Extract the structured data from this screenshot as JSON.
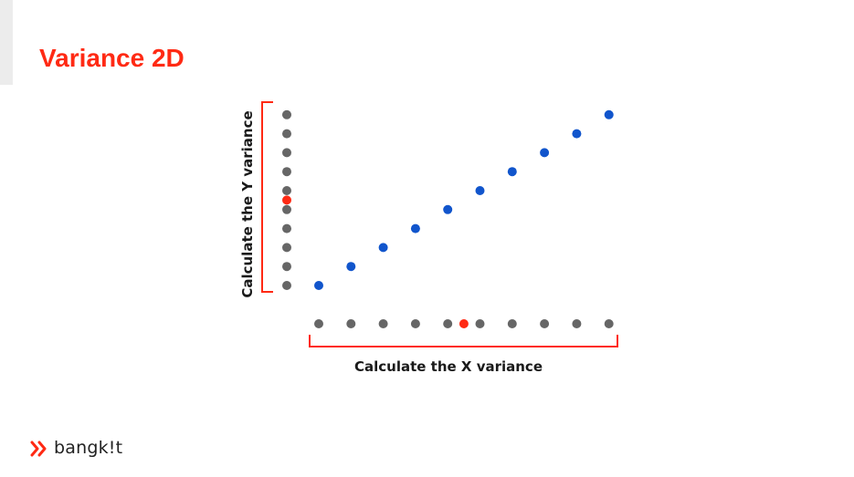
{
  "slide": {
    "title": "Variance 2D"
  },
  "diagram": {
    "x_variance_label": "Calculate the X variance",
    "y_variance_label": "Calculate the Y variance",
    "point_count": 10,
    "colors": {
      "data_point": "#1155cc",
      "projection_point": "#666666",
      "mean_point": "#ff2a14",
      "bracket": "#ff2a14"
    },
    "x_mean_marker": "between 5th and 6th point",
    "y_mean_marker": "between 5th and 6th point"
  },
  "chart_data": {
    "type": "scatter",
    "x": [
      1,
      2,
      3,
      4,
      5,
      6,
      7,
      8,
      9,
      10
    ],
    "y": [
      1,
      2,
      3,
      4,
      5,
      6,
      7,
      8,
      9,
      10
    ],
    "x_mean": 5.5,
    "y_mean": 5.5,
    "title": "",
    "xlabel": "Calculate the X variance",
    "ylabel": "Calculate the Y variance"
  },
  "brand": {
    "logo_text": "bangk!t",
    "logo_icon": "chevron-stripes-icon"
  }
}
